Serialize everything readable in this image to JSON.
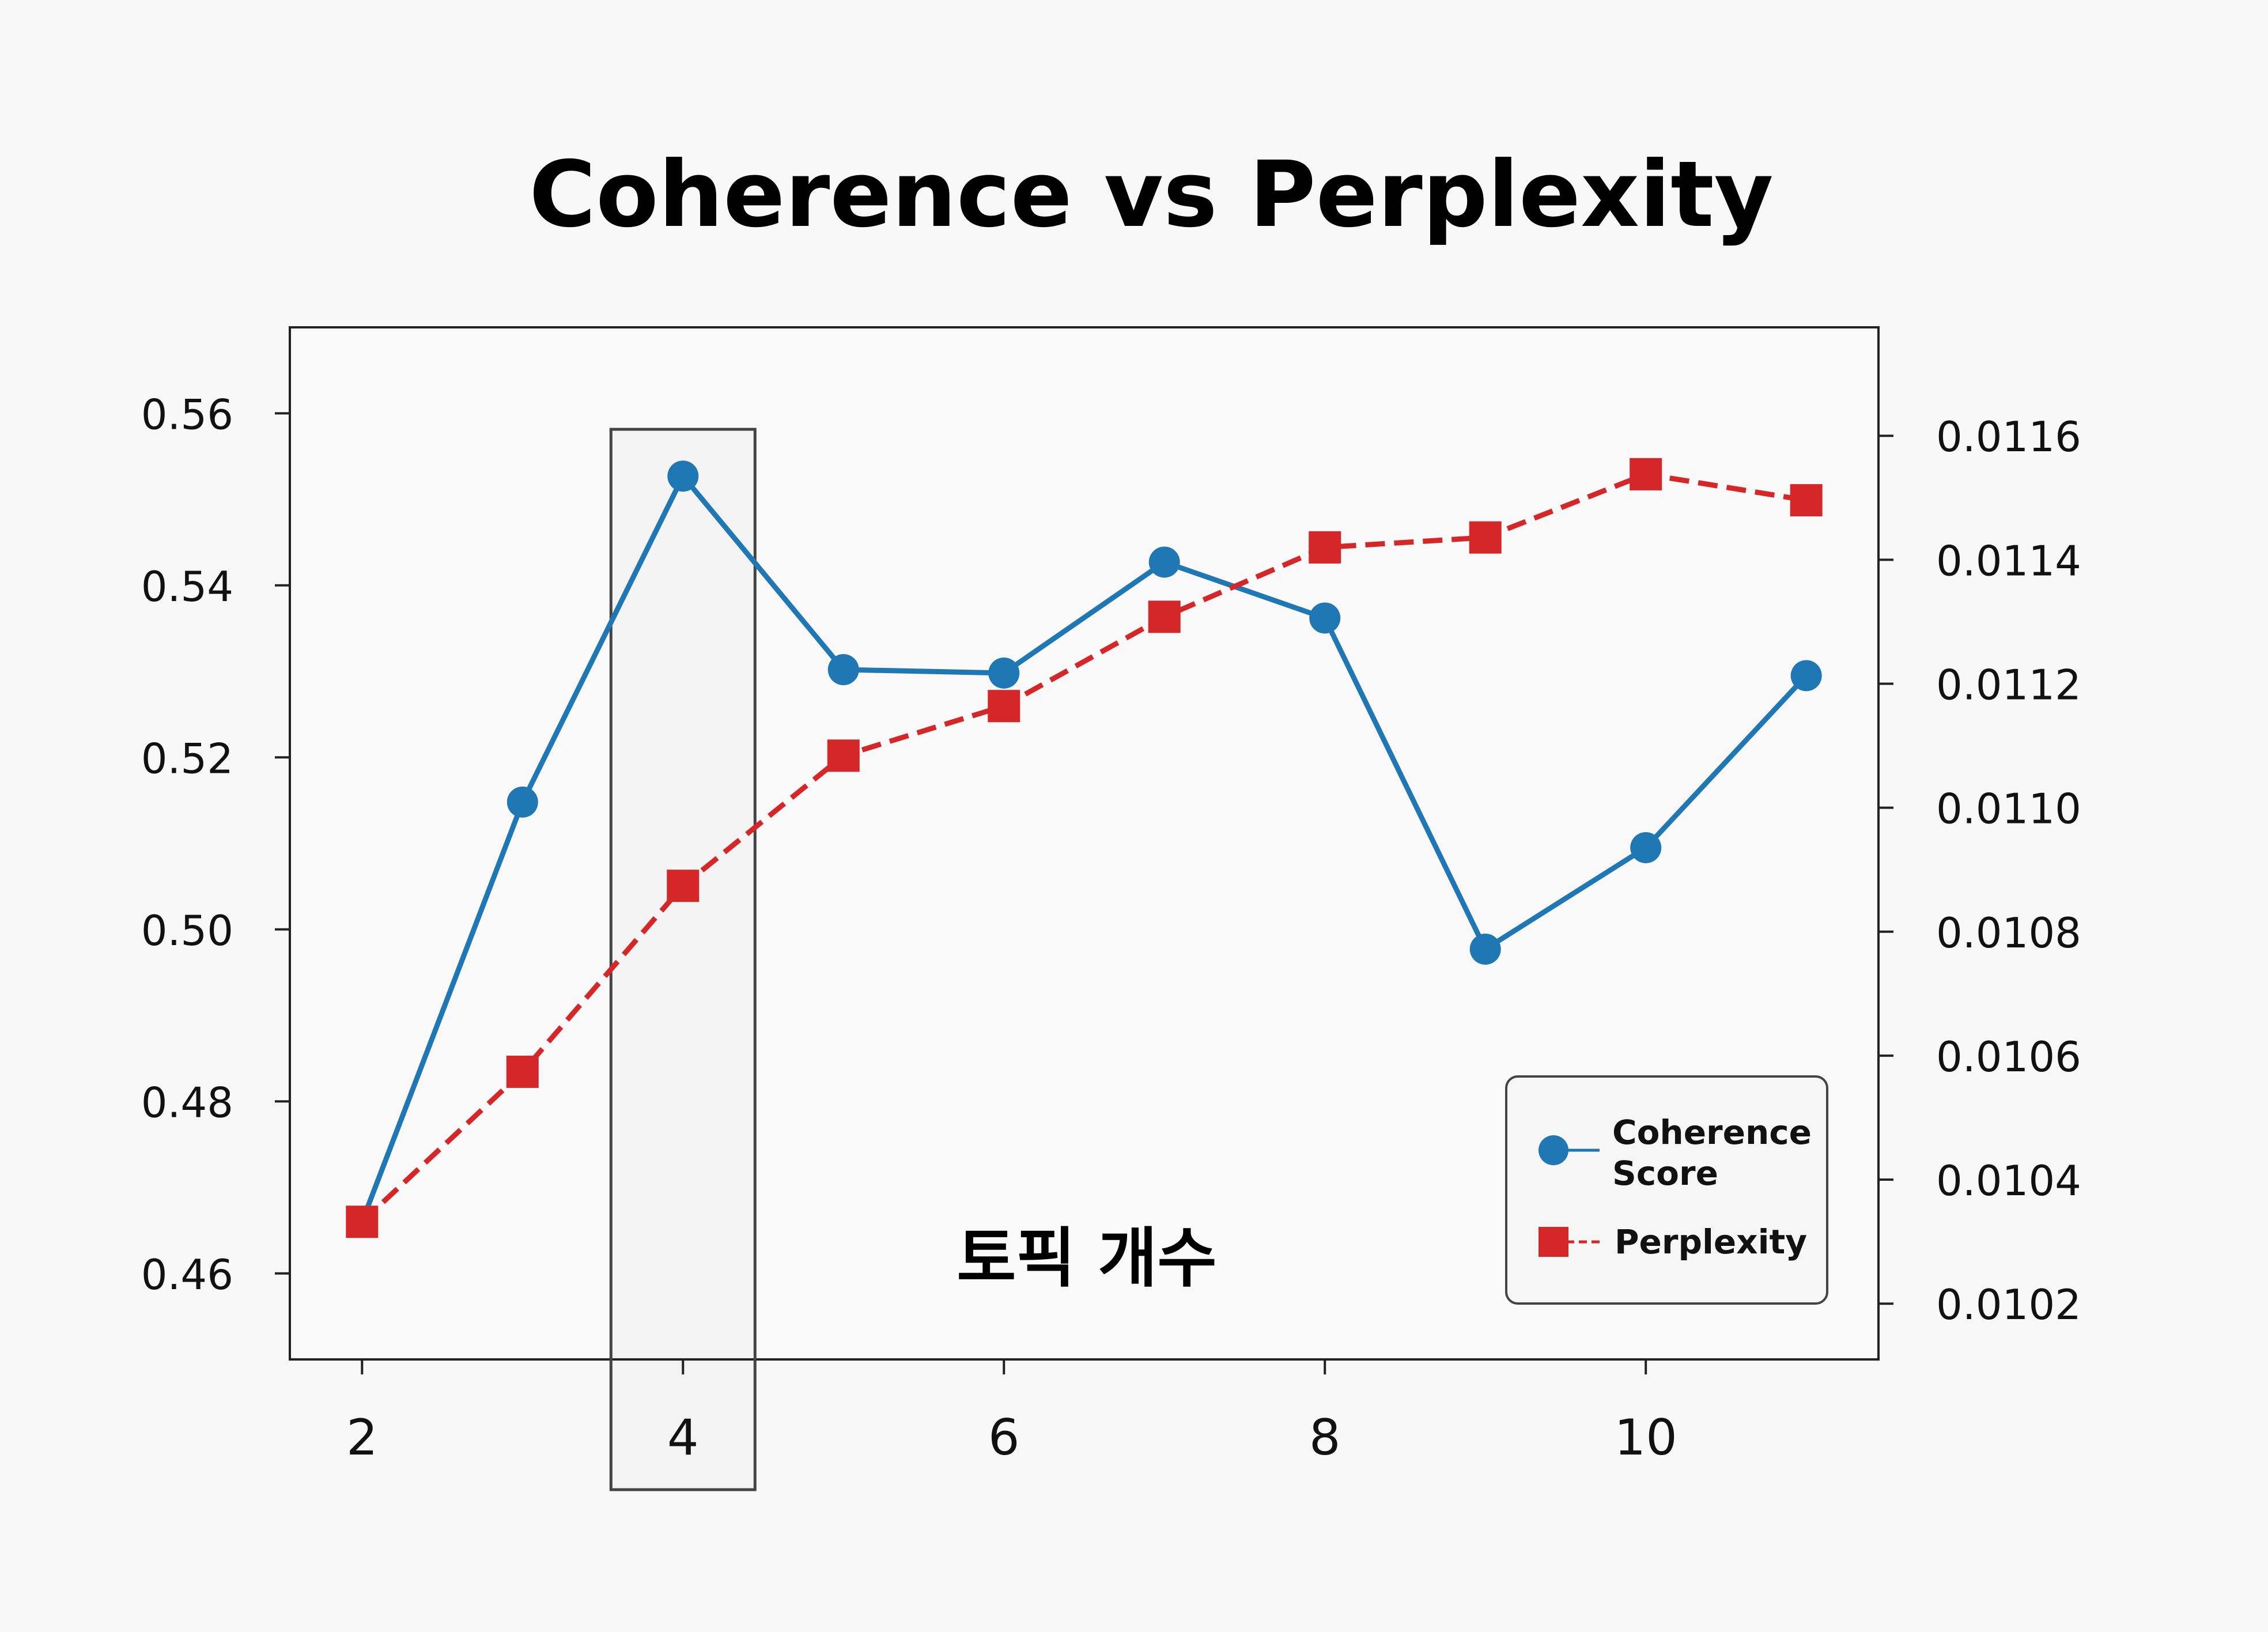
{
  "chart_data": {
    "type": "line",
    "title": "Coherence vs Perplexity",
    "xlabel": "토픽 개수",
    "x": [
      2,
      3,
      4,
      5,
      6,
      7,
      8,
      9,
      10,
      11
    ],
    "x_ticks": [
      "2",
      "4",
      "6",
      "8",
      "10"
    ],
    "xlim": [
      1.55,
      11.45
    ],
    "highlight_x": 4,
    "y_left": {
      "lim": [
        0.45,
        0.57
      ],
      "ticks": [
        "0.46",
        "0.48",
        "0.50",
        "0.52",
        "0.54",
        "0.56"
      ]
    },
    "y_right": {
      "lim": [
        0.01011,
        0.011775
      ],
      "ticks": [
        "0.0102",
        "0.0104",
        "0.0106",
        "0.0108",
        "0.0110",
        "0.0112",
        "0.0114",
        "0.0116"
      ]
    },
    "series": [
      {
        "name": "Coherence Score",
        "axis": "left",
        "marker": "circle",
        "line": "solid",
        "color": "#1f77b4",
        "values": [
          0.466,
          0.5148,
          0.5527,
          0.5302,
          0.5298,
          0.5427,
          0.5362,
          0.4977,
          0.5095,
          0.5295
        ]
      },
      {
        "name": "Perplexity",
        "axis": "right",
        "marker": "square",
        "line": "dashed",
        "color": "#d62728",
        "values": [
          0.010332,
          0.010574,
          0.010874,
          0.011084,
          0.011164,
          0.011308,
          0.01142,
          0.011436,
          0.011538,
          0.011496
        ]
      }
    ],
    "legend": {
      "placement": "lower-right",
      "entries": [
        "Coherence\nScore",
        "Perplexity"
      ]
    },
    "grid": false
  }
}
